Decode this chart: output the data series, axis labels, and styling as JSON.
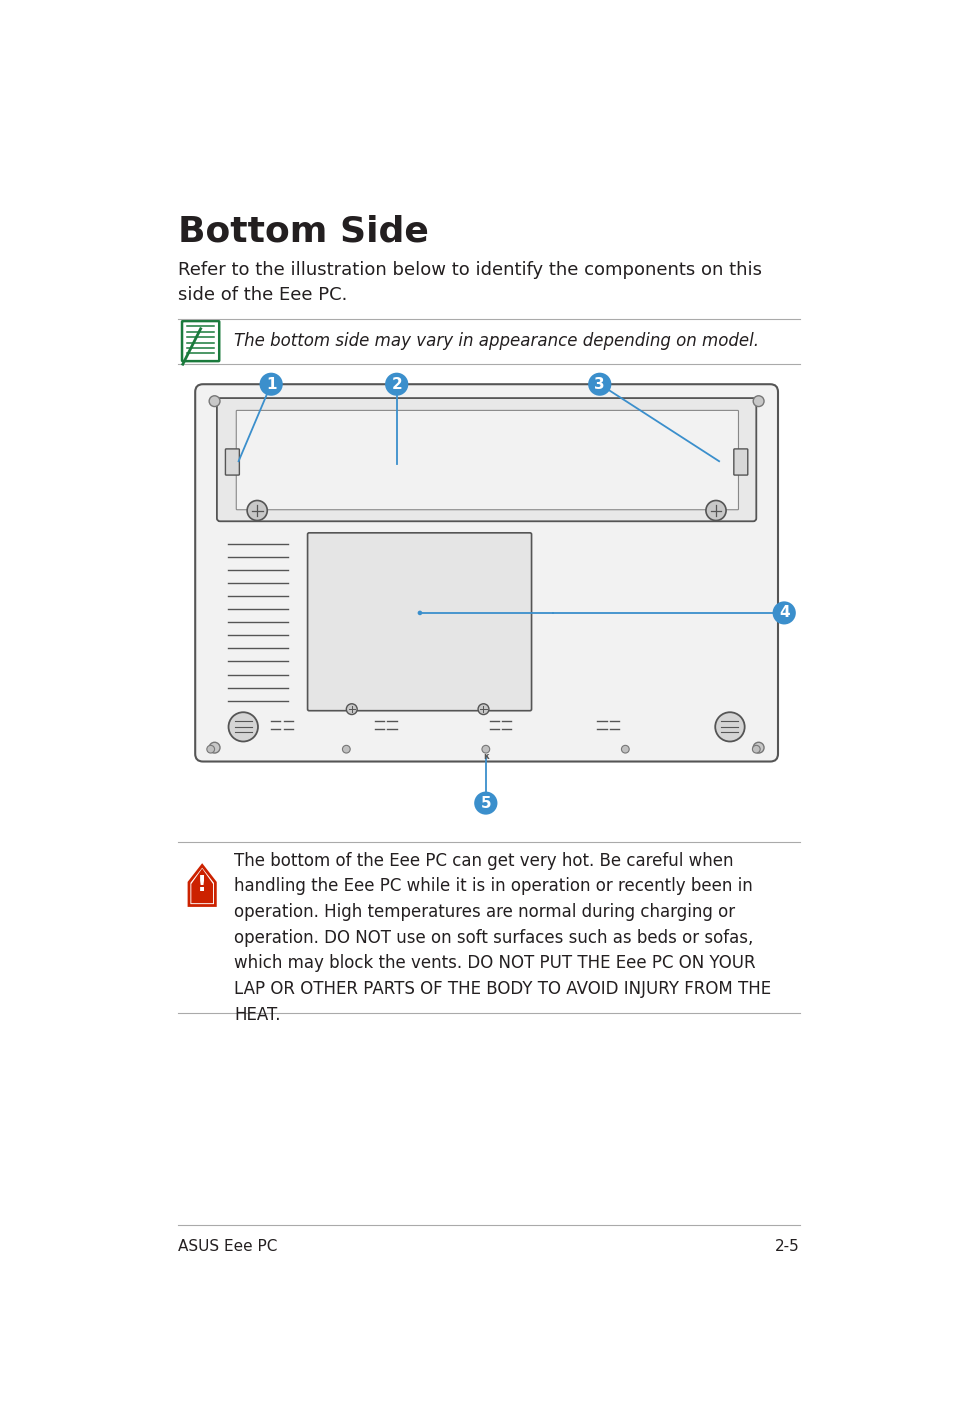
{
  "title": "Bottom Side",
  "subtitle": "Refer to the illustration below to identify the components on this\nside of the Eee PC.",
  "note_text": "The bottom side may vary in appearance depending on model.",
  "warning_text": "The bottom of the Eee PC can get very hot. Be careful when\nhandling the Eee PC while it is in operation or recently been in\noperation. High temperatures are normal during charging or\noperation. DO NOT use on soft surfaces such as beds or sofas,\nwhich may block the vents. DO NOT PUT THE Eee PC ON YOUR\nLAP OR OTHER PARTS OF THE BODY TO AVOID INJURY FROM THE\nHEAT.",
  "footer_left": "ASUS Eee PC",
  "footer_right": "2-5",
  "bg_color": "#ffffff",
  "text_color": "#231f20",
  "blue_color": "#3b8fcc",
  "note_icon_color": "#1a7a3c",
  "warning_icon_color": "#cc2200",
  "line_color": "#aaaaaa",
  "draw_color": "#555555",
  "ml": 76,
  "mr": 878
}
